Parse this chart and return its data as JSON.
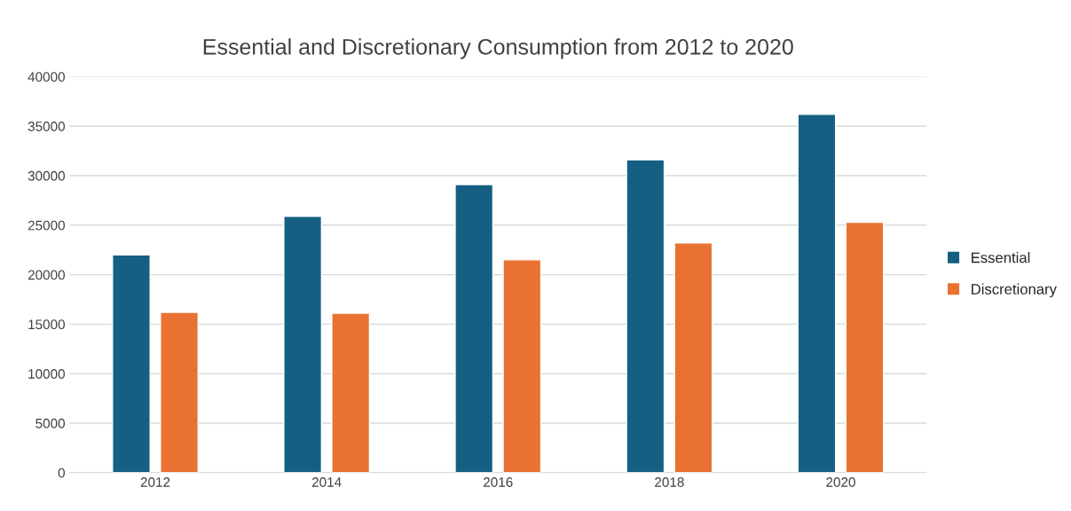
{
  "chart_data": {
    "type": "bar",
    "title": "Essential and Discretionary Consumption from 2012 to 2020",
    "categories": [
      "2012",
      "2014",
      "2016",
      "2018",
      "2020"
    ],
    "series": [
      {
        "name": "Essential",
        "color": "#156082",
        "values": [
          22000,
          25900,
          29100,
          31600,
          36200
        ]
      },
      {
        "name": "Discretionary",
        "color": "#e97132",
        "values": [
          16200,
          16100,
          21500,
          23200,
          25300
        ]
      }
    ],
    "ylim": [
      0,
      40000
    ],
    "yticks": [
      0,
      5000,
      10000,
      15000,
      20000,
      25000,
      30000,
      35000,
      40000
    ],
    "grid": "y",
    "legend": "right"
  }
}
